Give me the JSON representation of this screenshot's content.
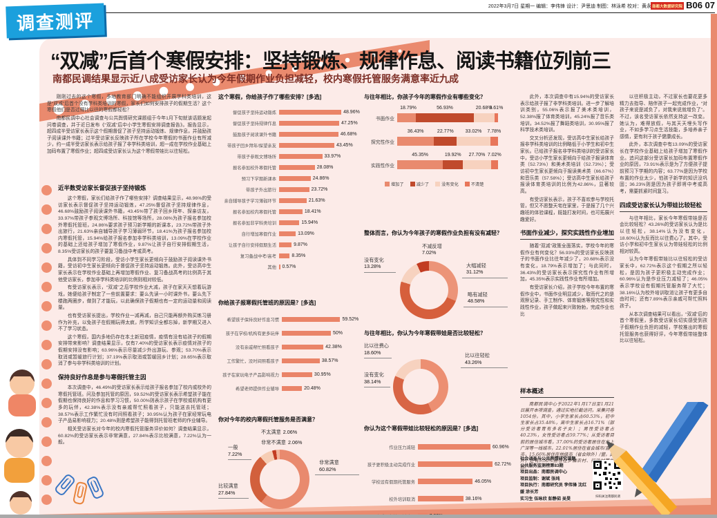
{
  "page_header": {
    "section_badge": "调查测评",
    "meta": "2022年3月7日 星期一 编辑：李伟锋 设计：尹思迪 制图：林泳希 校对：黄永文",
    "brand_badge": "南都大数据研究院",
    "page_number": "B06 07"
  },
  "headline": {
    "title": "“双减”后首个寒假安排：坚持锻炼、规律作息、阅读书籍位列前三",
    "subtitle": "南都民调结果显示近八成受访家长认为今年假期作业负担减轻，校内寒假托管服务满意率近九成"
  },
  "colors": {
    "accent": "#ea8468",
    "dark_red": "#c04a2c",
    "peach": "#f7d2bf",
    "panel_bg": "#fcebe8",
    "badge_blue": "#1ba0dd",
    "subtitle_red": "#7d2f26"
  },
  "columns": {
    "intro": {
      "blocks": [
        {
          "t": "p",
          "text": "刚刚过去的这个寒假，多地教育部门明确不能组织开展学科类培训，这是“双减”后首个没有学科类培训的寒假，家长们如何安排孩子的假期生活？这个寒假他们是否过得比以往的寒假都轻松？"
        },
        {
          "t": "p",
          "text": "南都民调中心社会调查与公共舆情研究课题组于今年1月下旬就该话题发起问卷调查，并于近日发布《“双减”后中小学生寒假安排调查报告》。报告显示，超四成半受访家长表示这个假期督促了孩子坚持运动锻炼、规律作息，并鼓励孩子阅读课外书籍；过半受访家长反映孩子所在学校今年寒假的书面作业有所减少，约一成半受访家长表示给孩子报了非学科类培训，超一成在学校作业基础上加码布置了寒假作业；超四成受访家长认为这个寒假带娃比以往轻松。"
        }
      ]
    },
    "col1": {
      "blocks": [
        {
          "t": "h",
          "text": "近半数受访家长督促孩子坚持锻炼"
        },
        {
          "t": "p",
          "text": "这个寒假，家长们给孩子作了哪些安排？调查结果显示，48.96%的受访家长表示督促孩子坚持运动锻炼，47.25%督促孩子坚持规律作息，46.68%鼓励孩子阅读课外书籍，43.45%带了孩子回乡拜年、探亲访友，33.97%带孩子参观文博场所、科技馆等场所，28.08%为孩子报名参加校外寒假托管班，24.86%要求孩子预习新学期的新课本，23.72%带孩子外出旅行，21.63%亲自辅导孩子学习薄弱环节，18.41%为孩子报名参加校内寒假托管，15.94%给孩子报名参加非学科类培训，13.09%在学校作业的基础上还给孩子增加了寒假作业，9.87%让孩子自行安排假期生活，8.35%受访家长的孩子要复习备战中考或高考。"
        },
        {
          "t": "p",
          "text": "具体到不同学习阶段，受访小学生家长更倾向于鼓励孩子阅读课外书籍，受访初中生家长更倾向于督促孩子坚持运动锻炼。此外，受访高中生家长表示在学校作业基础上再增加寒假作业、复习备战高考的比例高于其他受访家长，参加非学科类培训的比例则相对较低。"
        },
        {
          "t": "p",
          "text": "有受访家长表示，“双减”之后学校作业大减，孩子在家天天想着玩游戏，她便给孩子制定了一些前置要求：要么先读一小时课外书，要么先下楼跑两圈步，做到了才能玩，以此确保孩子假期也有一定的运动量和阅读量。"
        },
        {
          "t": "p",
          "text": "也有受访家长提出，学校作业一减再减，自己只能再额外购买练习册作为补充，以免孩子在假期玩得太疯，所学知识全都忘掉，新学期又进入不了学习状态。"
        },
        {
          "t": "p",
          "text": "这个寒假，国内多地仍存在本土新冠疫情，疫情有没有给孩子的假期安排带来影响？调查结果显示，仅有7.40%的受访家长表示疫情对孩子的假期安排没有影响；63.96%表示尽量减少外出游玩、参观；53.70%表示取消或暂缓旅行计划；37.19%表示取消或暂缓回乡计划；28.65%表示取消了参与非学科类培训的计划。"
        },
        {
          "t": "h",
          "text": "保持良好作息是参与寒假托管主因"
        },
        {
          "t": "p",
          "text": "本次调查中，46.49%的受访家长表示给孩子报名参加了校内或校外的寒假托管班。问及参加托管的原因，59.52%的受访家长表示希望孩子能在假期也保持良好的作息和学习习惯，50.00%则表示孩子在学校或机构有更多的玩伴，42.38%表示没有亲戚帮忙照看孩子，只能送去托管班；38.57%表示工作繁忙没有时间照看孩子；30.95%认为孩子在家经常玩电子产品易影响视力；20.48%则是希望孩子能得到托管班老师的作业辅导。"
        },
        {
          "t": "p",
          "text": "相关受访家长对今年的校内寒假托管服务评价如何？调查结果显示，60.82%的受访家长表示非常满意，27.84%表示比较满意，7.22%认为一般。"
        }
      ]
    },
    "col4": {
      "blocks": [
        {
          "t": "p",
          "text": "此外，本次调查中有15.94%的受访家长表示给孩子报了非学科类培训。进一步了解培训类别，55.06%表示报了美术类培训，52.38%报了体育类培训，45.24%报了音乐类培训，34.52%报了舞蹈类培训，30.95%报了科学技术类培训。"
        },
        {
          "t": "p",
          "text": "交叉分析还发现，受访高中生家长给孩子报非学科类培训的比例略低于小学生和初中生家长。已给孩子报名非学科类培训的受访家长中，受访小学生家长更倾向于给孩子报读体育类（52.73%）和美术类培训（52.73%）；受访初中生家长更倾向于报读美术类（66.67%）和音乐类（57.58%）；受访高中生家长给孩子报读体育类培训的比例为42.86%，显著较高。"
        },
        {
          "t": "p",
          "text": "有受访家长表示，孩子不喜欢参与学校托管，但又不愿整天宅在家里，于是报了几个兴趣班的体验课程，既能打发时间，也可拓展兴趣爱好。"
        },
        {
          "t": "h",
          "text": "书面作业减少，探究实践性作业增加"
        },
        {
          "t": "p",
          "text": "随着“双减”政策全面落实，学校今年的寒假作业有何变化？56.93%的受访家长反映孩子的书面作业比往年减少了，20.68%表示没有变化，18.79%表示增加了；与此同时，36.43%的受访家长表示探究性作业有所增加，45.35%表示实践性作业有所增加。"
        },
        {
          "t": "p",
          "text": "有受访家长介绍，孩子学校今年布置的寒假作业中，书面作业明显减少，取而代之的是观察记录、手工制作、体育锻炼等探究性和实践性作业，孩子做起来兴致勃勃，完成作业也比"
        }
      ]
    },
    "col5": {
      "blocks": [
        {
          "t": "p",
          "text": "以往积极主动，不过家长也要花更多精力去指导、陪伴孩子一起完成作业，“对孩子来说是减负了，对我来说就增负了”。不过，该名受访家长依然支持这一改变。她认为，难得放假，与其天天埋头写作业，不如多学习点生活技能，多培养亲子感情，更有利于孩子健康成长。"
        },
        {
          "t": "p",
          "text": "此外，本次调查中有13.09%的受访家长在学校作业基础上给孩子增加了寒假作业。追问这部分受访家长加码布置寒假作业的原因，73.91%表示是为了方便孩子提前预习下学期的内容；63.77%是因为学校布置的作业太少，怕孩子新学的知识没巩固；36.23%则是因为孩子即将中考或高考，需要抓紧时间复习。"
        },
        {
          "t": "h",
          "text": "四成受访家长认为带娃比较轻松"
        },
        {
          "t": "p",
          "text": "与往年相比，家长今年寒假带娃是否会比较轻松？43.26%的受访家长认为是比以往轻松，38.14%认为没有变化，18.60%认为反而比以往费心了。其中，受访小学和初中生家长认为带娃轻松的比例相对较高。"
        },
        {
          "t": "p",
          "text": "认为今年寒假带娃比以往轻松的受访家长中，62.72%表示这个假期之所以轻松，是因为孩子更积极主动完成作业；60.96%认为是作业压力减轻了；46.05%表示学校设有假期托管服务帮了大忙；38.16%认为校外培训取消让孩子有更多自由时间；还有7.89%表示亲戚可帮忙照料孩子。"
        },
        {
          "t": "p",
          "text": "从本次调查结果可以看出，“双减”后的首个寒假里，多数受访家长切实感受到孩子假期作业负担的减轻，学校推出的寒假托管服务也获得好评，今年寒假带娃整体比以往轻松。"
        }
      ]
    },
    "sample": {
      "blocks": [
        {
          "t": "h",
          "text": "样本概述"
        },
        {
          "t": "pi",
          "text": "南都民调中心于2022年1月17日至1月21日展开本项调查，通过实地拦截访问，采集问卷1054份。其中，小学生家长占60.53%，初中生家长占35.48%，高中生家长占16.71%（部分受访者育有多名子女）；男性受访者占40.23%，女性受访者占59.77%；从受访者目前的居住城市看，37.00%的受访者居住在北上广深等一线城市，22.01%居住在省会城市/直辖市，15.66%居住在地级市（省会除外）/盟，此外，还有5.50%居住在乡镇农村、行政村等地区。"
        }
      ]
    }
  },
  "credits": {
    "lines": [
      "社会调查与公共舆情研究课题",
      "公共服务监测榜第83期",
      "项目出品：南都民调中心",
      "项目监制：谢斌 张纯",
      "项目执行：南都研究员 李伟锋 沈红媛 涂长芳",
      "实习生 伍咏欣 彭静茹 吴旻"
    ],
    "qr_caption": "扫码关注南都民调"
  },
  "chart_data": [
    {
      "type": "bar",
      "title": "这个寒假，你给孩子作了哪些安排？[多选]",
      "axis_max": 50,
      "items": [
        {
          "label": "督促孩子坚持运动锻炼",
          "value": 48.96,
          "pct_label": "48.96%"
        },
        {
          "label": "督促孩子坚持规律作息",
          "value": 47.25,
          "pct_label": "47.25%"
        },
        {
          "label": "鼓励孩子阅读课外书籍",
          "value": 46.68,
          "pct_label": "46.68%"
        },
        {
          "label": "带孩子回乡拜年/探望亲友",
          "value": 43.45,
          "pct_label": "43.45%"
        },
        {
          "label": "带孩子参观文博场所",
          "value": 33.97,
          "pct_label": "33.97%"
        },
        {
          "label": "报名参加校外寒假托管",
          "value": 28.08,
          "pct_label": "28.08%"
        },
        {
          "label": "预习下学期新课本",
          "value": 24.86,
          "pct_label": "24.86%"
        },
        {
          "label": "带孩子外出旅行",
          "value": 23.72,
          "pct_label": "23.72%"
        },
        {
          "label": "亲自辅导孩子学习薄弱环节",
          "value": 21.63,
          "pct_label": "21.63%"
        },
        {
          "label": "报名参加校内寒假托管",
          "value": 18.41,
          "pct_label": "18.41%"
        },
        {
          "label": "报名参加非学科类培训",
          "value": 15.94,
          "pct_label": "15.94%"
        },
        {
          "label": "自行增加寒假作业",
          "value": 13.09,
          "pct_label": "13.09%"
        },
        {
          "label": "让孩子自行安排假期生活",
          "value": 9.87,
          "pct_label": "9.87%"
        },
        {
          "label": "复习备战中考/高考",
          "value": 8.35,
          "pct_label": "8.35%"
        },
        {
          "label": "其他",
          "value": 0.57,
          "pct_label": "0.57%"
        }
      ]
    },
    {
      "type": "bar",
      "title": "你给孩子报寒假托管班的原因是？[多选]",
      "axis_max": 62,
      "items": [
        {
          "label": "希望孩子保持良好作息习惯",
          "value": 59.52,
          "pct_label": "59.52%"
        },
        {
          "label": "孩子在学校/机构有更多玩伴",
          "value": 50,
          "pct_label": "50%"
        },
        {
          "label": "没有亲戚帮忙照看孩子",
          "value": 42.38,
          "pct_label": "42.38%"
        },
        {
          "label": "工作繁忙，没时间照看孩子",
          "value": 38.57,
          "pct_label": "38.57%"
        },
        {
          "label": "孩子在家玩电子产品影响视力",
          "value": 30.95,
          "pct_label": "30.95%"
        },
        {
          "label": "希望老师提供作业辅导",
          "value": 20.48,
          "pct_label": "20.48%"
        }
      ]
    },
    {
      "type": "donut",
      "title": "你对今年的校内寒假托管服务是否满意？",
      "slices": [
        {
          "label": "非常满意",
          "value": 60.82,
          "pct_label": "60.82%",
          "color": "#e98a6e"
        },
        {
          "label": "比较满意",
          "value": 27.84,
          "pct_label": "27.84%",
          "color": "#d2603c"
        },
        {
          "label": "一般",
          "value": 7.22,
          "pct_label": "7.22%",
          "color": "#f6cdb4"
        },
        {
          "label": "非常不满意",
          "value": 2.06,
          "pct_label": "2.06%",
          "color": "#c23c22"
        },
        {
          "label": "不太满意",
          "value": 2.06,
          "pct_label": "2.06%",
          "color": "#f3b49a"
        }
      ]
    },
    {
      "type": "stacked_bar",
      "title": "与往年相比，你孩子今年的寒假作业有哪些变化？",
      "categories": [
        "书面作业",
        "探究性作业",
        "实践性作业"
      ],
      "series": [
        {
          "name": "增加了",
          "color": "#e98a6e",
          "values": [
            18.79,
            36.43,
            45.35
          ],
          "pct_labels": [
            "18.79%",
            "36.43%",
            "45.35%"
          ]
        },
        {
          "name": "减少了",
          "color": "#c04a2c",
          "values": [
            56.93,
            22.77,
            19.92
          ],
          "pct_labels": [
            "56.93%",
            "22.77%",
            "19.92%"
          ]
        },
        {
          "name": "没有变化",
          "color": "#f7d2bf",
          "values": [
            20.68,
            33.02,
            27.7
          ],
          "pct_labels": [
            "20.68%",
            "33.02%",
            "27.70%"
          ]
        },
        {
          "name": "不清楚",
          "color": "#e8765a",
          "values": [
            3.61,
            7.78,
            7.02
          ],
          "pct_labels": [
            "3.61%",
            "7.78%",
            "7.02%"
          ]
        }
      ]
    },
    {
      "type": "donut",
      "title": "整体而言，你认为今年孩子的寒假作业负担有没有减轻？",
      "slices": [
        {
          "label": "大幅减轻",
          "value": 31.12,
          "pct_label": "31.12%",
          "color": "#ec9478"
        },
        {
          "label": "略有减轻",
          "value": 48.58,
          "pct_label": "48.58%",
          "color": "#d65f3c"
        },
        {
          "label": "没有变化",
          "value": 13.28,
          "pct_label": "13.28%",
          "color": "#f7d2bf"
        },
        {
          "label": "不减反增",
          "value": 7.02,
          "pct_label": "7.02%",
          "color": "#c23c22"
        }
      ]
    },
    {
      "type": "donut",
      "title": "与往年相比，你认为今年寒假带娃是否比较轻松？",
      "slices": [
        {
          "label": "比以往轻松",
          "value": 43.26,
          "pct_label": "43.26%",
          "color": "#ec8f72"
        },
        {
          "label": "没有变化",
          "value": 38.14,
          "pct_label": "38.14%",
          "color": "#d86545"
        },
        {
          "label": "比以往费心",
          "value": 18.6,
          "pct_label": "18.60%",
          "color": "#f7d2bf"
        }
      ]
    },
    {
      "type": "bar",
      "title": "你认为这个寒假带娃比较轻松的原因是？[多选]",
      "axis_max": 65,
      "items": [
        {
          "label": "作业压力减轻",
          "value": 60.96,
          "pct_label": "60.96%"
        },
        {
          "label": "孩子更积极主动完成作业",
          "value": 62.72,
          "pct_label": "62.72%"
        },
        {
          "label": "学校设有假期托管服务",
          "value": 46.05,
          "pct_label": "46.05%"
        },
        {
          "label": "校外培训取消",
          "value": 38.16,
          "pct_label": "38.16%"
        },
        {
          "label": "亲戚可帮忙照料孩子",
          "value": 7.89,
          "pct_label": "7.89%"
        }
      ]
    }
  ]
}
